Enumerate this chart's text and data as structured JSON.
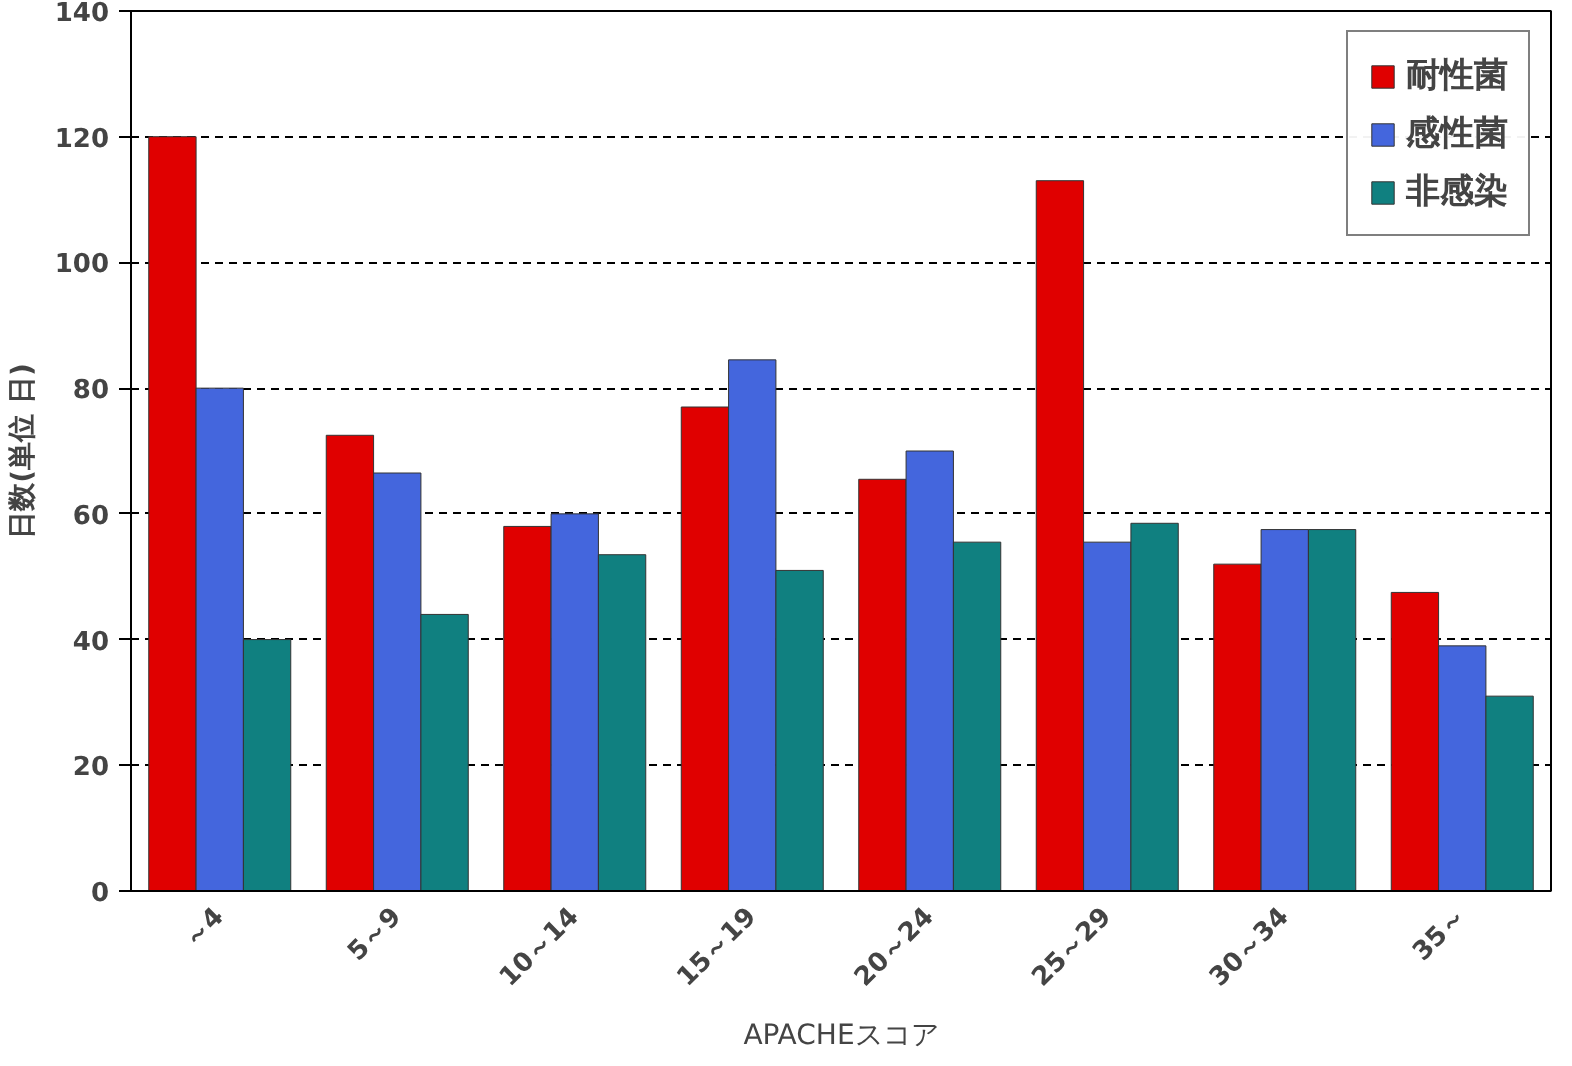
{
  "chart_data": {
    "type": "bar",
    "xlabel": "APACHEスコア",
    "ylabel": "日数(単位 日)",
    "categories": [
      "～4",
      "5～9",
      "10～14",
      "15～19",
      "20～24",
      "25～29",
      "30～34",
      "35～"
    ],
    "series": [
      {
        "name": "耐性菌",
        "color": "#e00000",
        "values": [
          120,
          72.5,
          58,
          77,
          65.5,
          113,
          52,
          47.5
        ]
      },
      {
        "name": "感性菌",
        "color": "#4466dd",
        "values": [
          80,
          66.5,
          60,
          84.5,
          70,
          55.5,
          57.5,
          39
        ]
      },
      {
        "name": "非感染",
        "color": "#108080",
        "values": [
          40,
          44,
          53.5,
          51,
          55.5,
          58.5,
          57.5,
          31
        ]
      }
    ],
    "ylim": [
      0,
      140
    ],
    "yticks": [
      0,
      20,
      40,
      60,
      80,
      100,
      120,
      140
    ],
    "grid": "y",
    "legend": "top right"
  }
}
